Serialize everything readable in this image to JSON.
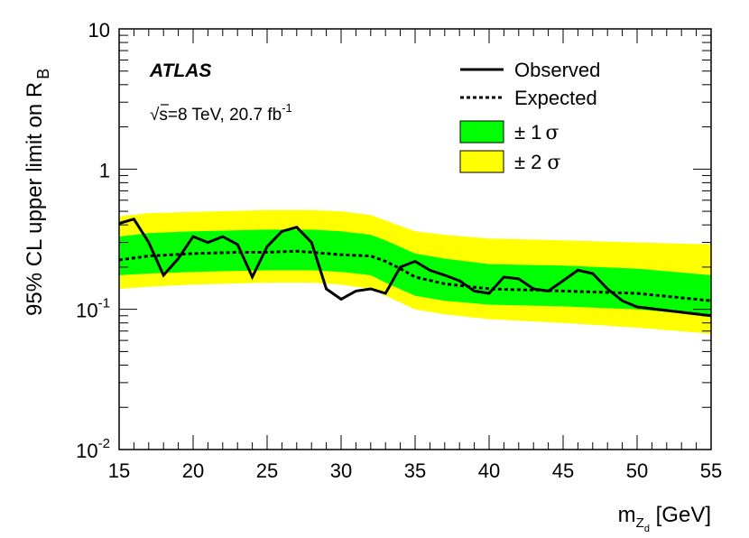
{
  "chart_data": {
    "type": "line",
    "title": "",
    "experiment": "ATLAS",
    "energy_label": "√s=8 TeV, 20.7 fb",
    "energy_label_superscript": "-1",
    "xlabel": "m",
    "xlabel_sub": "Z",
    "xlabel_subsub": "d",
    "xlabel_unit": "[GeV]",
    "ylabel": "95% CL upper limit on R",
    "ylabel_sub": "B",
    "xlim": [
      15,
      55
    ],
    "ylim": [
      0.01,
      10
    ],
    "yscale": "log",
    "x_ticks": [
      15,
      20,
      25,
      30,
      35,
      40,
      45,
      50,
      55
    ],
    "x_tick_labels": [
      "15",
      "20",
      "25",
      "30",
      "35",
      "40",
      "45",
      "50",
      "55"
    ],
    "y_ticks": [
      {
        "value": 10,
        "base": "10",
        "exp": ""
      },
      {
        "value": 1,
        "base": "1",
        "exp": ""
      },
      {
        "value": 0.1,
        "base": "10",
        "exp": "-1"
      },
      {
        "value": 0.01,
        "base": "10",
        "exp": "-2"
      }
    ],
    "legend": [
      {
        "key": "observed",
        "label": "Observed"
      },
      {
        "key": "expected",
        "label": "Expected"
      },
      {
        "key": "band1",
        "label": "± 1",
        "symbol": "σ"
      },
      {
        "key": "band2",
        "label": "± 2",
        "symbol": "σ"
      }
    ],
    "colors": {
      "band1": "#00ff00",
      "band2": "#ffff00",
      "line": "#000000"
    },
    "series": [
      {
        "name": "Observed",
        "x": [
          15,
          16,
          17,
          18,
          19,
          20,
          21,
          22,
          23,
          24,
          25,
          26,
          27,
          28,
          29,
          30,
          31,
          32,
          33,
          34,
          35,
          36,
          37,
          38,
          39,
          40,
          41,
          42,
          43,
          44,
          45,
          46,
          47,
          48,
          49,
          50,
          55
        ],
        "y": [
          0.41,
          0.44,
          0.3,
          0.175,
          0.23,
          0.33,
          0.3,
          0.33,
          0.29,
          0.17,
          0.28,
          0.36,
          0.385,
          0.3,
          0.14,
          0.118,
          0.135,
          0.14,
          0.13,
          0.2,
          0.22,
          0.19,
          0.175,
          0.16,
          0.135,
          0.13,
          0.17,
          0.165,
          0.14,
          0.135,
          0.16,
          0.19,
          0.18,
          0.14,
          0.115,
          0.104,
          0.09
        ]
      },
      {
        "name": "Expected",
        "x": [
          15,
          17,
          20,
          23,
          25,
          27,
          28,
          30,
          32,
          33,
          34,
          35,
          37,
          40,
          45,
          50,
          55
        ],
        "y": [
          0.225,
          0.24,
          0.25,
          0.255,
          0.255,
          0.26,
          0.255,
          0.245,
          0.24,
          0.22,
          0.195,
          0.17,
          0.152,
          0.14,
          0.135,
          0.13,
          0.115
        ]
      },
      {
        "name": "±1σ",
        "x": [
          15,
          17,
          20,
          25,
          28,
          30,
          32,
          33,
          35,
          37,
          40,
          45,
          50,
          55
        ],
        "upper": [
          0.33,
          0.35,
          0.36,
          0.37,
          0.37,
          0.36,
          0.34,
          0.31,
          0.25,
          0.23,
          0.21,
          0.205,
          0.195,
          0.175
        ],
        "lower": [
          0.175,
          0.18,
          0.185,
          0.19,
          0.19,
          0.185,
          0.175,
          0.155,
          0.125,
          0.115,
          0.108,
          0.105,
          0.1,
          0.09
        ]
      },
      {
        "name": "±2σ",
        "x": [
          15,
          17,
          20,
          25,
          28,
          30,
          32,
          33,
          35,
          37,
          40,
          45,
          50,
          55
        ],
        "upper": [
          0.46,
          0.485,
          0.495,
          0.51,
          0.51,
          0.5,
          0.47,
          0.43,
          0.36,
          0.34,
          0.32,
          0.31,
          0.3,
          0.29
        ],
        "lower": [
          0.14,
          0.145,
          0.15,
          0.155,
          0.155,
          0.15,
          0.14,
          0.125,
          0.1,
          0.092,
          0.085,
          0.08,
          0.074,
          0.067
        ]
      }
    ]
  }
}
